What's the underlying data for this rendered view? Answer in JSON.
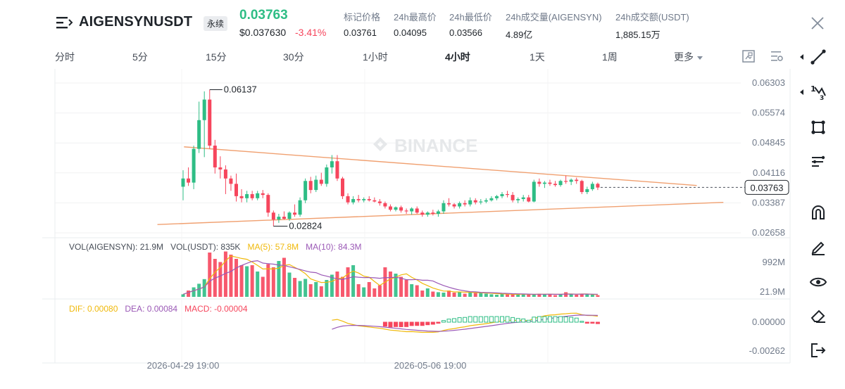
{
  "header": {
    "symbol": "AIGENSYNUSDT",
    "contract_type": "永续",
    "last_price": "0.03763",
    "usd_price": "$0.037630",
    "change_pct": "-3.41%",
    "stats": [
      {
        "label": "标记价格",
        "value": "0.03761"
      },
      {
        "label": "24h最高价",
        "value": "0.04095"
      },
      {
        "label": "24h最低价",
        "value": "0.03566"
      },
      {
        "label": "24h成交量(AIGENSYN)",
        "value": "4.89亿"
      },
      {
        "label": "24h成交额(USDT)",
        "value": "1,885.15万"
      }
    ]
  },
  "tabs": {
    "items": [
      "分时",
      "5分",
      "15分",
      "30分",
      "1小时",
      "4小时",
      "1天",
      "1周"
    ],
    "active": "4小时",
    "more": "更多"
  },
  "icons": {
    "menu": "menu-lines-icon",
    "close": "close-icon",
    "toolbar": [
      "screenshot-icon",
      "chart-settings-icon"
    ],
    "right_tools": [
      "trend-line-icon",
      "fibonacci-icon",
      "shapes-icon",
      "pattern-icon",
      "magnet-icon",
      "brush-icon",
      "eye-icon",
      "eraser-icon",
      "exit-icon"
    ]
  },
  "colors": {
    "up": "#2ebd85",
    "down": "#f6465d",
    "trendline": "#f0a070",
    "ma5": "#f0b90b",
    "ma10": "#9b59b6"
  },
  "watermark": "BINANCE",
  "chart_data": {
    "type": "candlestick",
    "price_axis": [
      "0.06303",
      "0.05574",
      "0.04845",
      "0.04116",
      "0.03387",
      "0.02658"
    ],
    "current_price_tag": "0.03763",
    "high_marker": "0.06137",
    "low_marker": "0.02824",
    "x_ticks": [
      "2026-04-29 19:00",
      "2026-05-06 19:00"
    ],
    "candles": [
      [
        0.0378,
        0.0418,
        0.0345,
        0.0398
      ],
      [
        0.0398,
        0.0425,
        0.038,
        0.0388
      ],
      [
        0.0388,
        0.0478,
        0.0372,
        0.047
      ],
      [
        0.047,
        0.0585,
        0.046,
        0.054
      ],
      [
        0.054,
        0.061,
        0.045,
        0.059
      ],
      [
        0.059,
        0.0614,
        0.047,
        0.0478
      ],
      [
        0.0478,
        0.0492,
        0.041,
        0.0425
      ],
      [
        0.0425,
        0.0452,
        0.0398,
        0.042
      ],
      [
        0.042,
        0.043,
        0.036,
        0.0398
      ],
      [
        0.0398,
        0.0405,
        0.0368,
        0.0385
      ],
      [
        0.0385,
        0.041,
        0.0342,
        0.0355
      ],
      [
        0.0355,
        0.0372,
        0.034,
        0.035
      ],
      [
        0.035,
        0.0368,
        0.034,
        0.036
      ],
      [
        0.036,
        0.0368,
        0.0345,
        0.035
      ],
      [
        0.035,
        0.0368,
        0.0345,
        0.0362
      ],
      [
        0.0362,
        0.037,
        0.035,
        0.0358
      ],
      [
        0.0358,
        0.0362,
        0.0305,
        0.0315
      ],
      [
        0.0315,
        0.032,
        0.0282,
        0.0298
      ],
      [
        0.0298,
        0.0312,
        0.029,
        0.0305
      ],
      [
        0.0305,
        0.0318,
        0.0298,
        0.03
      ],
      [
        0.03,
        0.0318,
        0.0295,
        0.0315
      ],
      [
        0.0315,
        0.0335,
        0.0305,
        0.031
      ],
      [
        0.031,
        0.0352,
        0.0305,
        0.0345
      ],
      [
        0.0345,
        0.0398,
        0.0338,
        0.0392
      ],
      [
        0.0392,
        0.0402,
        0.0362,
        0.037
      ],
      [
        0.037,
        0.0405,
        0.0365,
        0.0395
      ],
      [
        0.0395,
        0.0412,
        0.038,
        0.0385
      ],
      [
        0.0385,
        0.0432,
        0.0378,
        0.0425
      ],
      [
        0.0425,
        0.0455,
        0.041,
        0.044
      ],
      [
        0.044,
        0.0455,
        0.0392,
        0.0398
      ],
      [
        0.0398,
        0.0402,
        0.0348,
        0.0355
      ],
      [
        0.0355,
        0.0362,
        0.0335,
        0.034
      ],
      [
        0.034,
        0.0355,
        0.0335,
        0.0348
      ],
      [
        0.0348,
        0.0358,
        0.034,
        0.0345
      ],
      [
        0.0345,
        0.0352,
        0.034,
        0.0348
      ],
      [
        0.0348,
        0.0355,
        0.0342,
        0.0345
      ],
      [
        0.0345,
        0.0352,
        0.034,
        0.0342
      ],
      [
        0.0342,
        0.0348,
        0.0332,
        0.0338
      ],
      [
        0.0338,
        0.0342,
        0.0325,
        0.033
      ],
      [
        0.033,
        0.0335,
        0.0318,
        0.0322
      ],
      [
        0.0322,
        0.033,
        0.0318,
        0.0328
      ],
      [
        0.0328,
        0.0332,
        0.0315,
        0.032
      ],
      [
        0.032,
        0.0325,
        0.0312,
        0.0318
      ],
      [
        0.0318,
        0.0328,
        0.031,
        0.0325
      ],
      [
        0.0325,
        0.033,
        0.0312,
        0.0315
      ],
      [
        0.0315,
        0.032,
        0.0305,
        0.031
      ],
      [
        0.031,
        0.0318,
        0.0305,
        0.0315
      ],
      [
        0.0315,
        0.0322,
        0.0308,
        0.0312
      ],
      [
        0.0312,
        0.0322,
        0.0305,
        0.0318
      ],
      [
        0.0318,
        0.0345,
        0.0312,
        0.0338
      ],
      [
        0.0338,
        0.035,
        0.033,
        0.0335
      ],
      [
        0.0335,
        0.0338,
        0.0325,
        0.033
      ],
      [
        0.033,
        0.0342,
        0.0325,
        0.0338
      ],
      [
        0.0338,
        0.0345,
        0.033,
        0.0335
      ],
      [
        0.0335,
        0.0352,
        0.033,
        0.0345
      ],
      [
        0.0345,
        0.035,
        0.0335,
        0.034
      ],
      [
        0.034,
        0.0348,
        0.0335,
        0.0342
      ],
      [
        0.0342,
        0.035,
        0.0338,
        0.0345
      ],
      [
        0.0345,
        0.0355,
        0.0342,
        0.035
      ],
      [
        0.035,
        0.0358,
        0.0345,
        0.0355
      ],
      [
        0.0355,
        0.0365,
        0.035,
        0.036
      ],
      [
        0.036,
        0.0368,
        0.0352,
        0.0358
      ],
      [
        0.0358,
        0.0365,
        0.034,
        0.0345
      ],
      [
        0.0345,
        0.0352,
        0.0338,
        0.0348
      ],
      [
        0.0348,
        0.0358,
        0.0342,
        0.0352
      ],
      [
        0.0352,
        0.0358,
        0.034,
        0.0342
      ],
      [
        0.0342,
        0.0395,
        0.034,
        0.039
      ],
      [
        0.039,
        0.0398,
        0.0378,
        0.0385
      ],
      [
        0.0385,
        0.0392,
        0.0375,
        0.0388
      ],
      [
        0.0388,
        0.0395,
        0.038,
        0.0385
      ],
      [
        0.0385,
        0.0392,
        0.0378,
        0.0382
      ],
      [
        0.0382,
        0.0395,
        0.0378,
        0.0392
      ],
      [
        0.0392,
        0.0405,
        0.0385,
        0.039
      ],
      [
        0.039,
        0.0398,
        0.0382,
        0.0395
      ],
      [
        0.0395,
        0.04,
        0.0385,
        0.0392
      ],
      [
        0.0392,
        0.0395,
        0.036,
        0.0365
      ],
      [
        0.0365,
        0.0378,
        0.036,
        0.0372
      ],
      [
        0.0372,
        0.039,
        0.0368,
        0.0385
      ],
      [
        0.0385,
        0.0388,
        0.037,
        0.0376
      ]
    ],
    "trendlines": [
      {
        "from": [
          6,
          0.0475
        ],
        "to": [
          90,
          0.0381
        ]
      },
      {
        "from": [
          1,
          0.0286
        ],
        "to": [
          95,
          0.034
        ]
      }
    ],
    "volume_panel": {
      "legend": [
        {
          "text": "VOL(AIGENSYN): 21.9M",
          "color": "#474d57"
        },
        {
          "text": "VOL(USDT): 835K",
          "color": "#474d57"
        },
        {
          "text": "MA(5): 57.8M",
          "color": "#f0b90b"
        },
        {
          "text": "MA(10): 84.3M",
          "color": "#9b59b6"
        }
      ],
      "axis": [
        "992M",
        "21.9M"
      ],
      "values": [
        12,
        30,
        45,
        62,
        84,
        210,
        180,
        165,
        215,
        200,
        180,
        150,
        145,
        150,
        120,
        95,
        155,
        140,
        170,
        185,
        115,
        90,
        75,
        85,
        60,
        70,
        50,
        80,
        105,
        120,
        95,
        140,
        150,
        60,
        45,
        70,
        40,
        55,
        140,
        120,
        110,
        95,
        80,
        60,
        55,
        30,
        40,
        25,
        22,
        20,
        30,
        20,
        25,
        15,
        20,
        18,
        20,
        15,
        12,
        10,
        15,
        12,
        12,
        10,
        14,
        10,
        12,
        15,
        12,
        14,
        8,
        12,
        22,
        12,
        10,
        12,
        14,
        10,
        8
      ]
    },
    "macd_panel": {
      "legend": [
        {
          "text": "DIF: 0.00080",
          "color": "#f0b90b"
        },
        {
          "text": "DEA: 0.00084",
          "color": "#9b59b6"
        },
        {
          "text": "MACD: -0.00004",
          "color": "#f6465d"
        }
      ],
      "axis": [
        "0.00000",
        "-0.00262"
      ]
    }
  }
}
